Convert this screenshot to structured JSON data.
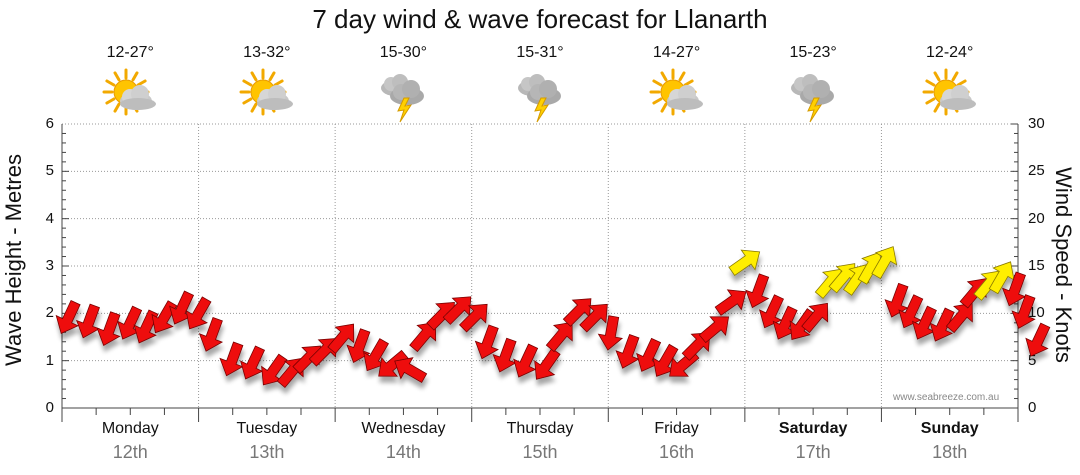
{
  "title": "7 day wind & wave forecast for Llanarth",
  "watermark": "www.seabreeze.com.au",
  "days": [
    {
      "name": "Monday",
      "date": "12th",
      "temp": "12-27°",
      "icon": "sun-cloud-icon",
      "bold": false
    },
    {
      "name": "Tuesday",
      "date": "13th",
      "temp": "13-32°",
      "icon": "sun-cloud-icon",
      "bold": false
    },
    {
      "name": "Wednesday",
      "date": "14th",
      "temp": "15-30°",
      "icon": "storm-cloud-icon",
      "bold": false
    },
    {
      "name": "Thursday",
      "date": "15th",
      "temp": "15-31°",
      "icon": "storm-cloud-icon",
      "bold": false
    },
    {
      "name": "Friday",
      "date": "16th",
      "temp": "14-27°",
      "icon": "sun-cloud-icon",
      "bold": false
    },
    {
      "name": "Saturday",
      "date": "17th",
      "temp": "15-23°",
      "icon": "storm-cloud-icon",
      "bold": true
    },
    {
      "name": "Sunday",
      "date": "18th",
      "temp": "12-24°",
      "icon": "sun-cloud-icon",
      "bold": true
    }
  ],
  "colors": {
    "arrow_normal": "#ee1111",
    "arrow_strong": "#ffee00",
    "grid": "#999999"
  },
  "chart_data": {
    "type": "line",
    "title": "7 day wind & wave forecast for Llanarth",
    "ylabel_left": "Wave Height - Metres",
    "ylabel_right": "Wind Speed - Knots",
    "y_left_ticks": [
      "0",
      "1",
      "2",
      "3",
      "4",
      "5",
      "6"
    ],
    "y_right_ticks": [
      "0",
      "5",
      "10",
      "15",
      "20",
      "25",
      "30"
    ],
    "ylim_left": [
      0,
      6
    ],
    "ylim_right": [
      0,
      30
    ],
    "x_unit": "days from Monday 00:00",
    "xlim": [
      0,
      7
    ],
    "strong_threshold_knots": 13,
    "wind_series": {
      "name": "Wind speed (knots) with direction arrows",
      "points": [
        [
          0.05,
          9.6,
          205
        ],
        [
          0.2,
          9.2,
          200
        ],
        [
          0.35,
          8.4,
          200
        ],
        [
          0.5,
          9.0,
          205
        ],
        [
          0.62,
          8.6,
          205
        ],
        [
          0.75,
          9.6,
          210
        ],
        [
          0.88,
          10.6,
          205
        ],
        [
          1.0,
          10.0,
          210
        ],
        [
          1.1,
          7.8,
          200
        ],
        [
          1.25,
          5.2,
          200
        ],
        [
          1.4,
          4.8,
          205
        ],
        [
          1.55,
          4.0,
          215
        ],
        [
          1.68,
          3.8,
          40
        ],
        [
          1.8,
          5.2,
          45
        ],
        [
          1.92,
          6.0,
          45
        ],
        [
          2.05,
          7.4,
          40
        ],
        [
          2.18,
          6.6,
          200
        ],
        [
          2.3,
          5.6,
          210
        ],
        [
          2.42,
          4.6,
          230
        ],
        [
          2.55,
          4.0,
          300
        ],
        [
          2.65,
          7.6,
          40
        ],
        [
          2.78,
          9.8,
          45
        ],
        [
          2.9,
          10.4,
          45
        ],
        [
          3.02,
          9.6,
          45
        ],
        [
          3.12,
          7.0,
          200
        ],
        [
          3.25,
          5.6,
          200
        ],
        [
          3.4,
          5.0,
          205
        ],
        [
          3.55,
          4.6,
          215
        ],
        [
          3.65,
          7.6,
          40
        ],
        [
          3.78,
          10.2,
          45
        ],
        [
          3.9,
          9.6,
          45
        ],
        [
          4.02,
          8.0,
          190
        ],
        [
          4.15,
          6.0,
          200
        ],
        [
          4.3,
          5.6,
          205
        ],
        [
          4.42,
          5.0,
          210
        ],
        [
          4.55,
          4.6,
          230
        ],
        [
          4.65,
          6.6,
          45
        ],
        [
          4.78,
          8.4,
          50
        ],
        [
          4.9,
          11.2,
          55
        ],
        [
          5.0,
          15.4,
          55
        ],
        [
          5.1,
          12.4,
          200
        ],
        [
          5.2,
          10.2,
          205
        ],
        [
          5.3,
          9.0,
          205
        ],
        [
          5.42,
          8.8,
          215
        ],
        [
          5.52,
          9.6,
          40
        ],
        [
          5.62,
          13.2,
          40
        ],
        [
          5.72,
          13.8,
          40
        ],
        [
          5.82,
          13.6,
          35
        ],
        [
          5.92,
          14.8,
          30
        ],
        [
          6.02,
          15.4,
          30
        ],
        [
          6.12,
          11.4,
          200
        ],
        [
          6.22,
          10.2,
          205
        ],
        [
          6.32,
          9.0,
          205
        ],
        [
          6.45,
          8.8,
          205
        ],
        [
          6.58,
          9.6,
          40
        ],
        [
          6.68,
          12.2,
          40
        ],
        [
          6.78,
          13.0,
          40
        ],
        [
          6.88,
          13.8,
          30
        ],
        [
          6.98,
          12.6,
          200
        ],
        [
          7.05,
          10.2,
          200
        ],
        [
          7.15,
          7.2,
          205
        ]
      ]
    }
  }
}
